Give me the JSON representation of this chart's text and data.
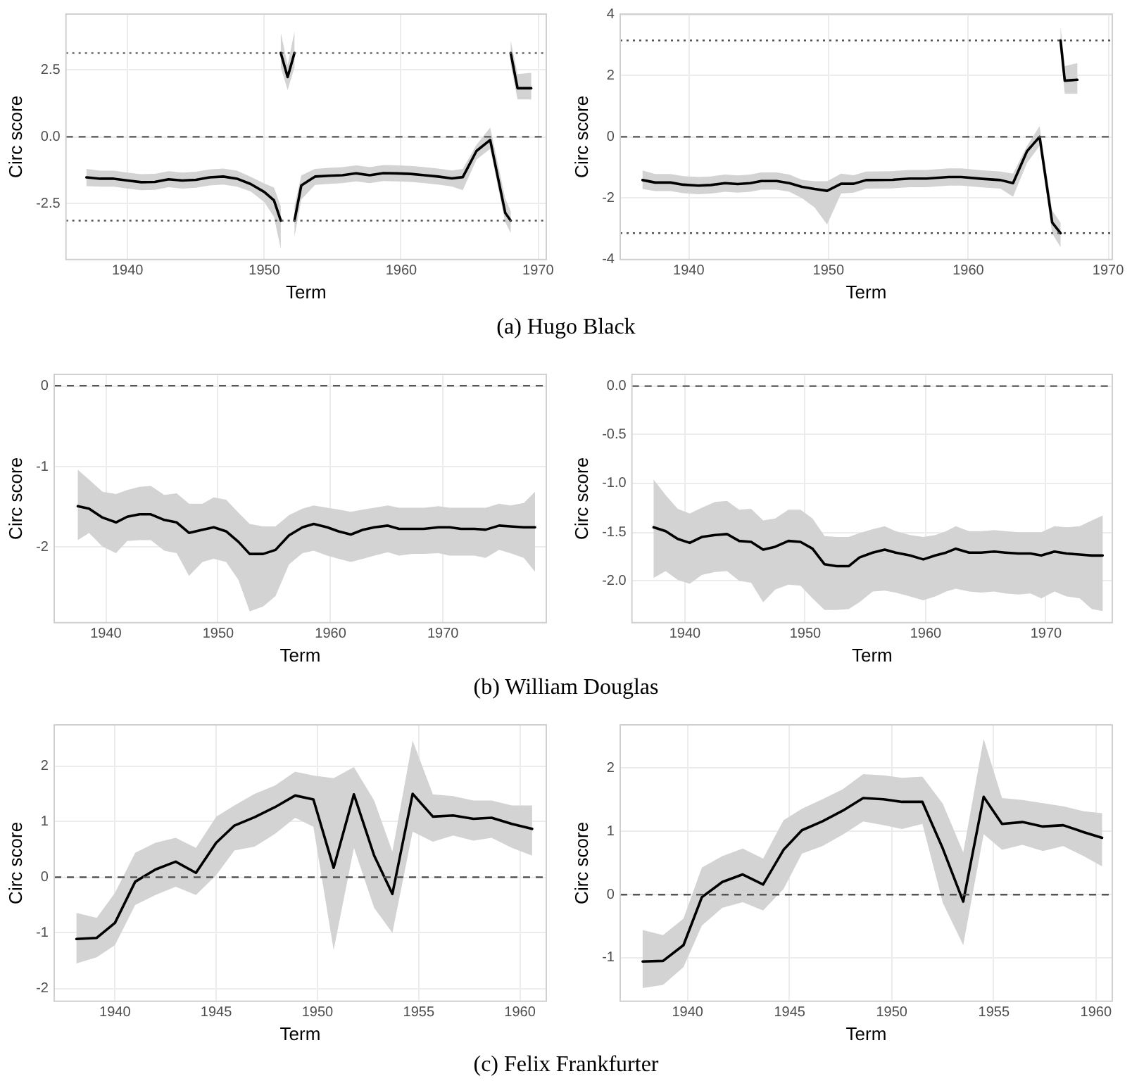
{
  "chart_data": [
    {
      "type": "line",
      "xlabel": "Term",
      "ylabel": "Circ score",
      "annotations": [
        "(a) Hugo Black"
      ],
      "grid": true,
      "xlim": [
        1935.5,
        1970.6
      ],
      "xticks": [
        1940,
        1950,
        1960,
        1970
      ],
      "ylim": [
        -4.6,
        4.6
      ],
      "yticks": [
        -2.5,
        {
          "value": 0,
          "label": "0.0"
        },
        2.5
      ],
      "ref_lines": [
        {
          "axis": "y",
          "value": 0,
          "line_style": "dashed"
        },
        {
          "axis": "y",
          "value": 3.14,
          "line_style": "dotted"
        },
        {
          "axis": "y",
          "value": -3.14,
          "line_style": "dotted"
        }
      ],
      "series": [
        {
          "color": "#000000",
          "x": [
            1937,
            1938,
            1939,
            1940,
            1941,
            1942,
            1943,
            1944,
            1945,
            1946,
            1947,
            1948,
            1949,
            1950,
            1950.7,
            1951.2
          ],
          "values": [
            -1.52,
            -1.57,
            -1.57,
            -1.64,
            -1.7,
            -1.69,
            -1.59,
            -1.64,
            -1.61,
            -1.52,
            -1.49,
            -1.57,
            -1.77,
            -2.07,
            -2.38,
            -3.14
          ],
          "lower": [
            -1.85,
            -1.87,
            -1.87,
            -1.94,
            -2.0,
            -1.99,
            -1.89,
            -1.94,
            -1.91,
            -1.82,
            -1.79,
            -1.87,
            -2.05,
            -2.45,
            -3.0,
            -4.2
          ],
          "upper": [
            -1.2,
            -1.27,
            -1.27,
            -1.34,
            -1.4,
            -1.39,
            -1.29,
            -1.34,
            -1.31,
            -1.22,
            -1.19,
            -1.27,
            -1.5,
            -1.75,
            -1.9,
            -2.6
          ]
        },
        {
          "color": "#000000",
          "x": [
            1951.2,
            1951.7,
            1952.2
          ],
          "values": [
            3.14,
            2.24,
            3.14
          ],
          "lower": [
            2.6,
            1.75,
            2.6
          ],
          "upper": [
            3.9,
            2.7,
            3.95
          ]
        },
        {
          "color": "#000000",
          "x": [
            1952.2,
            1952.7,
            1953.7,
            1954.7,
            1955.7,
            1956.7,
            1957.7,
            1958.7,
            1959.7,
            1960.7,
            1961.7,
            1962.7,
            1963.7,
            1964.5,
            1965.5,
            1966.5,
            1967.6,
            1968
          ],
          "values": [
            -3.14,
            -1.82,
            -1.49,
            -1.46,
            -1.44,
            -1.37,
            -1.44,
            -1.36,
            -1.37,
            -1.39,
            -1.44,
            -1.49,
            -1.56,
            -1.51,
            -0.53,
            -0.12,
            -2.85,
            -3.14
          ],
          "lower": [
            -3.75,
            -2.35,
            -1.8,
            -1.76,
            -1.74,
            -1.67,
            -1.74,
            -1.66,
            -1.67,
            -1.69,
            -1.74,
            -1.79,
            -1.86,
            -2.0,
            -0.85,
            -0.45,
            -3.2,
            -3.6
          ],
          "upper": [
            -2.6,
            -1.45,
            -1.2,
            -1.16,
            -1.14,
            -1.07,
            -1.14,
            -1.06,
            -1.07,
            -1.09,
            -1.14,
            -1.19,
            -1.26,
            -1.2,
            -0.3,
            0.35,
            -2.3,
            -2.8
          ]
        },
        {
          "color": "#000000",
          "x": [
            1968,
            1968.5,
            1969.5
          ],
          "values": [
            3.14,
            1.82,
            1.82
          ],
          "lower": [
            2.7,
            1.4,
            1.4
          ],
          "upper": [
            3.6,
            2.35,
            2.4
          ]
        }
      ]
    },
    {
      "type": "line",
      "xlabel": "Term",
      "ylabel": "Circ score",
      "grid": true,
      "xlim": [
        1935.1,
        1970.3
      ],
      "xticks": [
        1940,
        1950,
        1960,
        1970
      ],
      "ylim": [
        -4,
        4
      ],
      "yticks": [
        -4,
        -2,
        0,
        2,
        4
      ],
      "ref_lines": [
        {
          "axis": "y",
          "value": 0,
          "line_style": "dashed"
        },
        {
          "axis": "y",
          "value": 3.14,
          "line_style": "dotted"
        },
        {
          "axis": "y",
          "value": -3.14,
          "line_style": "dotted"
        }
      ],
      "series": [
        {
          "color": "#000000",
          "x": [
            1936.7,
            1937.6,
            1938.7,
            1939.6,
            1940.7,
            1941.6,
            1942.6,
            1943.5,
            1944.4,
            1945.2,
            1946.3,
            1947.2,
            1948.1,
            1949.0,
            1949.9,
            1950.9,
            1951.8,
            1952.7,
            1954.6,
            1955.8,
            1957.0,
            1958.6,
            1959.5,
            1961.0,
            1962.3,
            1963.2,
            1964.2,
            1965.1,
            1966.0,
            1966.6
          ],
          "values": [
            -1.41,
            -1.49,
            -1.49,
            -1.56,
            -1.59,
            -1.57,
            -1.51,
            -1.54,
            -1.51,
            -1.44,
            -1.44,
            -1.51,
            -1.63,
            -1.7,
            -1.76,
            -1.53,
            -1.53,
            -1.41,
            -1.4,
            -1.36,
            -1.36,
            -1.31,
            -1.31,
            -1.37,
            -1.41,
            -1.51,
            -0.47,
            0.0,
            -2.79,
            -3.14
          ],
          "lower": [
            -1.7,
            -1.77,
            -1.77,
            -1.84,
            -1.87,
            -1.85,
            -1.79,
            -1.82,
            -1.79,
            -1.72,
            -1.72,
            -1.79,
            -2.0,
            -2.3,
            -2.86,
            -1.85,
            -1.82,
            -1.69,
            -1.68,
            -1.64,
            -1.64,
            -1.59,
            -1.59,
            -1.65,
            -1.69,
            -1.95,
            -0.85,
            -0.3,
            -3.15,
            -3.6
          ],
          "upper": [
            -1.1,
            -1.21,
            -1.21,
            -1.28,
            -1.31,
            -1.29,
            -1.23,
            -1.26,
            -1.23,
            -1.16,
            -1.16,
            -1.23,
            -1.4,
            -1.45,
            -1.45,
            -1.2,
            -1.25,
            -1.13,
            -1.12,
            -1.08,
            -1.08,
            -1.03,
            -1.03,
            -1.09,
            -1.13,
            -1.2,
            -0.3,
            0.35,
            -2.4,
            -2.8
          ]
        },
        {
          "color": "#000000",
          "x": [
            1966.6,
            1966.9,
            1967.8
          ],
          "values": [
            3.14,
            1.83,
            1.86
          ],
          "lower": [
            2.75,
            1.4,
            1.4
          ],
          "upper": [
            3.6,
            2.3,
            2.4
          ]
        }
      ]
    },
    {
      "type": "line",
      "xlabel": "Term",
      "ylabel": "Circ score",
      "annotations": [
        "(b) William Douglas"
      ],
      "grid": true,
      "xlim": [
        1935.4,
        1979.2
      ],
      "xticks": [
        1940,
        1950,
        1960,
        1970
      ],
      "ylim": [
        -2.93,
        0.14
      ],
      "yticks": [
        -2,
        -1,
        0
      ],
      "ref_lines": [
        {
          "axis": "y",
          "value": 0,
          "line_style": "dashed"
        }
      ],
      "series": [
        {
          "color": "#000000",
          "x": [
            1937.5,
            1938.5,
            1939.7,
            1940.9,
            1941.9,
            1943.0,
            1944.0,
            1945.2,
            1946.3,
            1947.4,
            1948.6,
            1949.6,
            1950.7,
            1951.8,
            1952.8,
            1954.0,
            1955.1,
            1956.3,
            1957.5,
            1958.5,
            1959.7,
            1960.7,
            1961.8,
            1962.9,
            1963.9,
            1965.1,
            1966.1,
            1967.3,
            1968.3,
            1969.6,
            1970.6,
            1971.6,
            1972.8,
            1973.8,
            1975.0,
            1976.0,
            1977.2,
            1978.2
          ],
          "values": [
            -1.49,
            -1.52,
            -1.63,
            -1.69,
            -1.62,
            -1.59,
            -1.59,
            -1.66,
            -1.69,
            -1.82,
            -1.78,
            -1.75,
            -1.8,
            -1.93,
            -2.08,
            -2.08,
            -2.03,
            -1.85,
            -1.75,
            -1.71,
            -1.75,
            -1.8,
            -1.84,
            -1.78,
            -1.75,
            -1.73,
            -1.77,
            -1.77,
            -1.77,
            -1.75,
            -1.75,
            -1.77,
            -1.77,
            -1.78,
            -1.73,
            -1.74,
            -1.75,
            -1.75
          ],
          "lower": [
            -1.91,
            -1.82,
            -1.99,
            -2.07,
            -1.92,
            -1.91,
            -1.91,
            -2.04,
            -2.07,
            -2.35,
            -2.18,
            -2.14,
            -2.18,
            -2.4,
            -2.79,
            -2.73,
            -2.6,
            -2.21,
            -2.07,
            -2.04,
            -2.1,
            -2.14,
            -2.18,
            -2.14,
            -2.1,
            -2.06,
            -2.1,
            -2.08,
            -2.08,
            -2.07,
            -2.1,
            -2.1,
            -2.1,
            -2.13,
            -2.03,
            -2.07,
            -2.13,
            -2.3
          ],
          "upper": [
            -1.04,
            -1.16,
            -1.31,
            -1.34,
            -1.29,
            -1.25,
            -1.24,
            -1.35,
            -1.33,
            -1.46,
            -1.46,
            -1.38,
            -1.41,
            -1.57,
            -1.71,
            -1.74,
            -1.74,
            -1.6,
            -1.52,
            -1.48,
            -1.51,
            -1.53,
            -1.56,
            -1.53,
            -1.51,
            -1.48,
            -1.51,
            -1.51,
            -1.51,
            -1.49,
            -1.51,
            -1.51,
            -1.51,
            -1.51,
            -1.46,
            -1.48,
            -1.45,
            -1.31
          ]
        }
      ]
    },
    {
      "type": "line",
      "xlabel": "Term",
      "ylabel": "Circ score",
      "grid": true,
      "xlim": [
        1935.6,
        1975.5
      ],
      "xticks": [
        1940,
        1950,
        1960,
        1970
      ],
      "ylim": [
        -2.43,
        0.12
      ],
      "yticks": [
        {
          "value": -2,
          "label": "-2.0"
        },
        -1.5,
        {
          "value": -1,
          "label": "-1.0"
        },
        -0.5,
        {
          "value": 0,
          "label": "0.0"
        }
      ],
      "ref_lines": [
        {
          "axis": "y",
          "value": 0,
          "line_style": "dashed"
        }
      ],
      "series": [
        {
          "color": "#000000",
          "x": [
            1937.4,
            1938.4,
            1939.4,
            1940.4,
            1941.4,
            1942.5,
            1943.5,
            1944.5,
            1945.5,
            1946.5,
            1947.5,
            1948.6,
            1949.6,
            1950.6,
            1951.6,
            1952.6,
            1953.6,
            1954.5,
            1955.6,
            1956.6,
            1957.5,
            1958.7,
            1959.8,
            1960.8,
            1961.7,
            1962.5,
            1963.6,
            1964.6,
            1965.7,
            1966.6,
            1967.7,
            1968.7,
            1969.6,
            1970.7,
            1971.7,
            1972.8,
            1973.8,
            1974.7
          ],
          "values": [
            -1.45,
            -1.49,
            -1.57,
            -1.61,
            -1.55,
            -1.53,
            -1.52,
            -1.59,
            -1.6,
            -1.68,
            -1.65,
            -1.59,
            -1.6,
            -1.67,
            -1.83,
            -1.85,
            -1.85,
            -1.76,
            -1.71,
            -1.68,
            -1.71,
            -1.74,
            -1.78,
            -1.74,
            -1.71,
            -1.67,
            -1.71,
            -1.71,
            -1.7,
            -1.71,
            -1.72,
            -1.72,
            -1.74,
            -1.7,
            -1.72,
            -1.73,
            -1.74,
            -1.74
          ],
          "lower": [
            -1.97,
            -1.9,
            -1.99,
            -2.03,
            -1.94,
            -1.91,
            -1.9,
            -2.0,
            -2.02,
            -2.22,
            -2.09,
            -2.04,
            -2.05,
            -2.18,
            -2.3,
            -2.3,
            -2.29,
            -2.22,
            -2.11,
            -2.1,
            -2.12,
            -2.16,
            -2.2,
            -2.16,
            -2.11,
            -2.08,
            -2.11,
            -2.12,
            -2.11,
            -2.13,
            -2.14,
            -2.13,
            -2.18,
            -2.11,
            -2.16,
            -2.18,
            -2.29,
            -2.31
          ],
          "upper": [
            -0.96,
            -1.12,
            -1.26,
            -1.31,
            -1.25,
            -1.19,
            -1.18,
            -1.27,
            -1.26,
            -1.38,
            -1.36,
            -1.27,
            -1.27,
            -1.36,
            -1.54,
            -1.55,
            -1.55,
            -1.51,
            -1.47,
            -1.44,
            -1.49,
            -1.53,
            -1.55,
            -1.53,
            -1.49,
            -1.44,
            -1.49,
            -1.49,
            -1.48,
            -1.49,
            -1.5,
            -1.5,
            -1.5,
            -1.44,
            -1.45,
            -1.44,
            -1.38,
            -1.33
          ]
        }
      ]
    },
    {
      "type": "line",
      "xlabel": "Term",
      "ylabel": "Circ score",
      "annotations": [
        "(c) Felix Frankfurter"
      ],
      "grid": true,
      "xlim": [
        1937,
        1961.3
      ],
      "xticks": [
        1940,
        1945,
        1950,
        1955,
        1960
      ],
      "ylim": [
        -2.23,
        2.74
      ],
      "yticks": [
        -2,
        -1,
        0,
        1,
        2
      ],
      "ref_lines": [
        {
          "axis": "y",
          "value": 0,
          "line_style": "dashed"
        }
      ],
      "series": [
        {
          "color": "#000000",
          "x": [
            1938.1,
            1939.1,
            1940.0,
            1941.0,
            1942.0,
            1943.0,
            1944.0,
            1945.0,
            1945.9,
            1946.9,
            1947.9,
            1948.9,
            1949.8,
            1950.8,
            1951.8,
            1952.8,
            1953.7,
            1954.7,
            1955.7,
            1956.7,
            1957.7,
            1958.6,
            1959.6,
            1960.6
          ],
          "values": [
            -1.11,
            -1.09,
            -0.82,
            -0.08,
            0.14,
            0.28,
            0.08,
            0.62,
            0.93,
            1.08,
            1.26,
            1.47,
            1.4,
            0.17,
            1.49,
            0.39,
            -0.3,
            1.5,
            1.09,
            1.11,
            1.05,
            1.07,
            0.96,
            0.87
          ],
          "lower": [
            -1.55,
            -1.44,
            -1.22,
            -0.5,
            -0.32,
            -0.17,
            -0.32,
            0.04,
            0.48,
            0.55,
            0.78,
            1.07,
            0.91,
            -1.31,
            0.53,
            -0.55,
            -1.0,
            0.82,
            0.64,
            0.75,
            0.66,
            0.71,
            0.53,
            0.39
          ],
          "upper": [
            -0.64,
            -0.73,
            -0.28,
            0.44,
            0.62,
            0.71,
            0.53,
            1.09,
            1.29,
            1.5,
            1.65,
            1.9,
            1.83,
            1.78,
            1.98,
            1.38,
            0.46,
            2.46,
            1.49,
            1.46,
            1.38,
            1.38,
            1.29,
            1.29
          ]
        }
      ]
    },
    {
      "type": "line",
      "xlabel": "Term",
      "ylabel": "Circ score",
      "grid": true,
      "xlim": [
        1936.7,
        1960.8
      ],
      "xticks": [
        1940,
        1945,
        1950,
        1955,
        1960
      ],
      "ylim": [
        -1.69,
        2.69
      ],
      "yticks": [
        -1,
        0,
        1,
        2
      ],
      "ref_lines": [
        {
          "axis": "y",
          "value": 0,
          "line_style": "dashed"
        }
      ],
      "series": [
        {
          "color": "#000000",
          "x": [
            1937.8,
            1938.8,
            1939.8,
            1940.7,
            1941.7,
            1942.7,
            1943.7,
            1944.7,
            1945.6,
            1946.6,
            1947.6,
            1948.6,
            1949.6,
            1950.5,
            1951.5,
            1952.5,
            1953.5,
            1954.5,
            1955.4,
            1956.4,
            1957.4,
            1958.4,
            1959.4,
            1960.3
          ],
          "values": [
            -1.06,
            -1.05,
            -0.8,
            -0.04,
            0.2,
            0.32,
            0.16,
            0.71,
            1.02,
            1.16,
            1.33,
            1.53,
            1.51,
            1.47,
            1.47,
            0.73,
            -0.11,
            1.55,
            1.12,
            1.15,
            1.08,
            1.1,
            0.99,
            0.9
          ],
          "lower": [
            -1.48,
            -1.43,
            -1.15,
            -0.49,
            -0.21,
            -0.12,
            -0.25,
            0.09,
            0.65,
            0.77,
            0.95,
            1.16,
            1.1,
            1.04,
            1.12,
            -0.13,
            -0.8,
            0.96,
            0.71,
            0.79,
            0.69,
            0.77,
            0.61,
            0.45
          ],
          "upper": [
            -0.56,
            -0.64,
            -0.38,
            0.43,
            0.61,
            0.73,
            0.57,
            1.18,
            1.36,
            1.51,
            1.67,
            1.91,
            1.89,
            1.85,
            1.87,
            1.44,
            0.67,
            2.47,
            1.53,
            1.5,
            1.45,
            1.4,
            1.32,
            1.29
          ]
        }
      ]
    }
  ]
}
